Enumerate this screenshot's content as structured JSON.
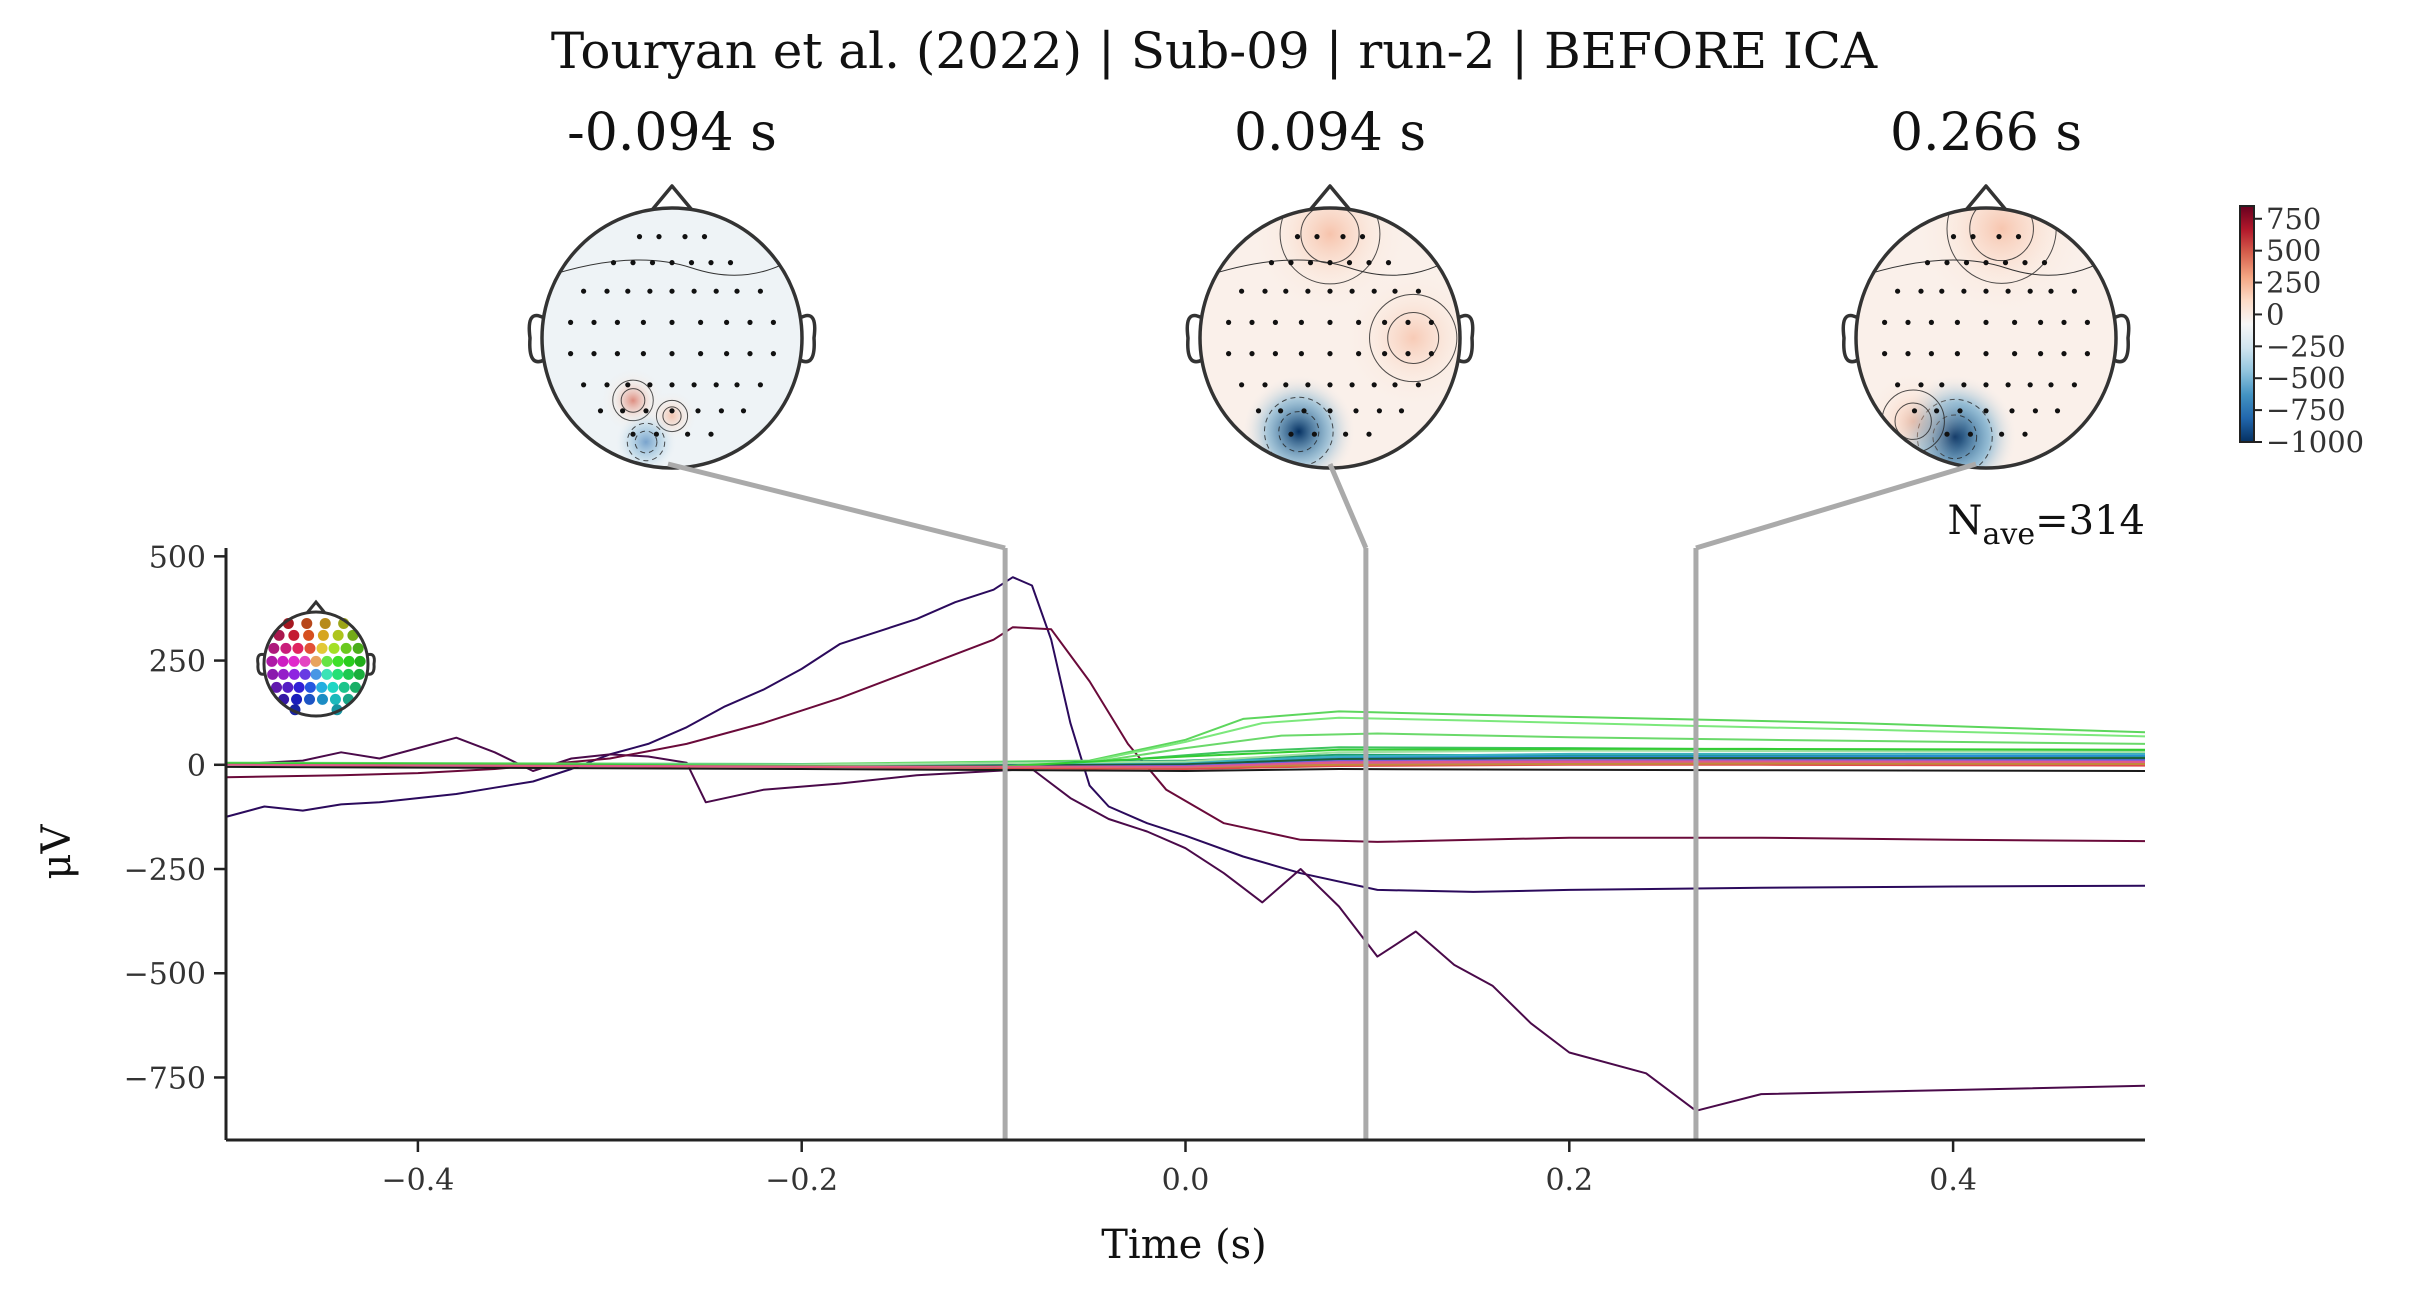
{
  "figure": {
    "title": "Touryan et al. (2022) | Sub-09 | run-2 | BEFORE ICA",
    "nave_label_main": "N",
    "nave_label_sub": "ave",
    "nave_value": "=314"
  },
  "topomaps": [
    {
      "title": "-0.094 s",
      "time": -0.094,
      "blobs": [
        {
          "fx": 0.35,
          "fy": 0.74,
          "r": 0.13,
          "sign": 1,
          "strength": 0.35
        },
        {
          "fx": 0.5,
          "fy": 0.8,
          "r": 0.1,
          "sign": 1,
          "strength": 0.25
        },
        {
          "fx": 0.4,
          "fy": 0.9,
          "r": 0.12,
          "sign": -1,
          "strength": 0.22
        }
      ]
    },
    {
      "title": "0.094 s",
      "time": 0.094,
      "blobs": [
        {
          "fx": 0.38,
          "fy": 0.86,
          "r": 0.22,
          "sign": -1,
          "strength": 0.85
        },
        {
          "fx": 0.5,
          "fy": 0.1,
          "r": 0.32,
          "sign": 1,
          "strength": 0.25
        },
        {
          "fx": 0.82,
          "fy": 0.5,
          "r": 0.28,
          "sign": 1,
          "strength": 0.15
        }
      ]
    },
    {
      "title": "0.266 s",
      "time": 0.266,
      "blobs": [
        {
          "fx": 0.38,
          "fy": 0.88,
          "r": 0.24,
          "sign": -1,
          "strength": 1.0
        },
        {
          "fx": 0.56,
          "fy": 0.08,
          "r": 0.35,
          "sign": 1,
          "strength": 0.22
        },
        {
          "fx": 0.22,
          "fy": 0.82,
          "r": 0.2,
          "sign": 1,
          "strength": 0.2
        }
      ]
    }
  ],
  "colorbar": {
    "ticks": [
      "750",
      "500",
      "250",
      "0",
      "−250",
      "−500",
      "−750",
      "−1000"
    ],
    "tick_values": [
      750,
      500,
      250,
      0,
      -250,
      -500,
      -750,
      -1000
    ],
    "vmin": -1000,
    "vmax": 850,
    "colors": [
      "#67001f",
      "#b2182b",
      "#d6604d",
      "#f4a582",
      "#fddbc7",
      "#f7f7f7",
      "#d1e5f0",
      "#92c5de",
      "#4393c3",
      "#2166ac",
      "#053061"
    ]
  },
  "chart_data": {
    "type": "line",
    "xlabel": "Time (s)",
    "ylabel": "μV",
    "xlim": [
      -0.5,
      0.5
    ],
    "ylim": [
      -900,
      520
    ],
    "x_ticks": [
      -0.4,
      -0.2,
      0.0,
      0.2,
      0.4
    ],
    "x_tick_labels": [
      "−0.4",
      "−0.2",
      "0.0",
      "0.2",
      "0.4"
    ],
    "y_ticks": [
      500,
      250,
      0,
      -250,
      -500,
      -750
    ],
    "y_tick_labels": [
      "500",
      "250",
      "0",
      "−250",
      "−500",
      "−750"
    ],
    "time_markers": [
      -0.094,
      0.094,
      0.266
    ],
    "marker_color": "#aaaaaa",
    "series": [
      {
        "color": "#2b0a5c",
        "points": [
          [
            -0.5,
            -125
          ],
          [
            -0.48,
            -100
          ],
          [
            -0.46,
            -110
          ],
          [
            -0.44,
            -95
          ],
          [
            -0.42,
            -90
          ],
          [
            -0.4,
            -80
          ],
          [
            -0.38,
            -70
          ],
          [
            -0.36,
            -55
          ],
          [
            -0.34,
            -40
          ],
          [
            -0.32,
            -10
          ],
          [
            -0.3,
            25
          ],
          [
            -0.28,
            50
          ],
          [
            -0.26,
            90
          ],
          [
            -0.24,
            140
          ],
          [
            -0.22,
            180
          ],
          [
            -0.2,
            230
          ],
          [
            -0.18,
            290
          ],
          [
            -0.16,
            320
          ],
          [
            -0.14,
            350
          ],
          [
            -0.12,
            390
          ],
          [
            -0.1,
            420
          ],
          [
            -0.09,
            450
          ],
          [
            -0.08,
            430
          ],
          [
            -0.07,
            300
          ],
          [
            -0.06,
            100
          ],
          [
            -0.05,
            -50
          ],
          [
            -0.04,
            -100
          ],
          [
            -0.02,
            -140
          ],
          [
            0.0,
            -170
          ],
          [
            0.03,
            -220
          ],
          [
            0.06,
            -260
          ],
          [
            0.1,
            -300
          ],
          [
            0.15,
            -305
          ],
          [
            0.2,
            -300
          ],
          [
            0.3,
            -295
          ],
          [
            0.4,
            -292
          ],
          [
            0.5,
            -290
          ]
        ]
      },
      {
        "color": "#4a0a4a",
        "points": [
          [
            -0.5,
            0
          ],
          [
            -0.46,
            10
          ],
          [
            -0.44,
            30
          ],
          [
            -0.42,
            15
          ],
          [
            -0.4,
            40
          ],
          [
            -0.38,
            65
          ],
          [
            -0.36,
            30
          ],
          [
            -0.34,
            -15
          ],
          [
            -0.32,
            15
          ],
          [
            -0.3,
            25
          ],
          [
            -0.28,
            20
          ],
          [
            -0.26,
            5
          ],
          [
            -0.25,
            -90
          ],
          [
            -0.22,
            -60
          ],
          [
            -0.18,
            -45
          ],
          [
            -0.14,
            -25
          ],
          [
            -0.1,
            -15
          ],
          [
            -0.08,
            -10
          ],
          [
            -0.06,
            -80
          ],
          [
            -0.04,
            -130
          ],
          [
            -0.02,
            -160
          ],
          [
            0.0,
            -200
          ],
          [
            0.02,
            -260
          ],
          [
            0.04,
            -330
          ],
          [
            0.06,
            -250
          ],
          [
            0.08,
            -340
          ],
          [
            0.1,
            -460
          ],
          [
            0.12,
            -400
          ],
          [
            0.14,
            -480
          ],
          [
            0.16,
            -530
          ],
          [
            0.18,
            -620
          ],
          [
            0.2,
            -690
          ],
          [
            0.24,
            -740
          ],
          [
            0.266,
            -830
          ],
          [
            0.3,
            -790
          ],
          [
            0.4,
            -780
          ],
          [
            0.5,
            -770
          ]
        ]
      },
      {
        "color": "#6a0a3a",
        "points": [
          [
            -0.5,
            -30
          ],
          [
            -0.44,
            -25
          ],
          [
            -0.4,
            -20
          ],
          [
            -0.36,
            -10
          ],
          [
            -0.3,
            15
          ],
          [
            -0.26,
            50
          ],
          [
            -0.22,
            100
          ],
          [
            -0.18,
            160
          ],
          [
            -0.14,
            230
          ],
          [
            -0.1,
            300
          ],
          [
            -0.09,
            330
          ],
          [
            -0.07,
            325
          ],
          [
            -0.05,
            200
          ],
          [
            -0.03,
            50
          ],
          [
            -0.01,
            -60
          ],
          [
            0.02,
            -140
          ],
          [
            0.06,
            -180
          ],
          [
            0.1,
            -185
          ],
          [
            0.2,
            -175
          ],
          [
            0.3,
            -175
          ],
          [
            0.4,
            -180
          ],
          [
            0.5,
            -183
          ]
        ]
      },
      {
        "color": "#5dd65d",
        "points": [
          [
            -0.5,
            5
          ],
          [
            -0.2,
            2
          ],
          [
            -0.05,
            10
          ],
          [
            0.0,
            60
          ],
          [
            0.03,
            110
          ],
          [
            0.08,
            128
          ],
          [
            0.15,
            120
          ],
          [
            0.25,
            110
          ],
          [
            0.35,
            100
          ],
          [
            0.5,
            78
          ]
        ]
      },
      {
        "color": "#7ce87c",
        "points": [
          [
            -0.5,
            2
          ],
          [
            -0.2,
            0
          ],
          [
            -0.05,
            8
          ],
          [
            0.0,
            55
          ],
          [
            0.04,
            100
          ],
          [
            0.08,
            113
          ],
          [
            0.15,
            106
          ],
          [
            0.25,
            95
          ],
          [
            0.35,
            85
          ],
          [
            0.5,
            68
          ]
        ]
      },
      {
        "color": "#6ad96a",
        "points": [
          [
            -0.5,
            0
          ],
          [
            -0.2,
            -2
          ],
          [
            -0.05,
            5
          ],
          [
            0.0,
            40
          ],
          [
            0.05,
            70
          ],
          [
            0.1,
            75
          ],
          [
            0.2,
            66
          ],
          [
            0.3,
            60
          ],
          [
            0.5,
            50
          ]
        ]
      },
      {
        "color": "#3fc45f",
        "points": [
          [
            -0.5,
            0
          ],
          [
            -0.2,
            0
          ],
          [
            -0.05,
            5
          ],
          [
            0.02,
            30
          ],
          [
            0.08,
            42
          ],
          [
            0.2,
            40
          ],
          [
            0.3,
            37
          ],
          [
            0.5,
            32
          ]
        ]
      },
      {
        "color": "#1fa06a",
        "points": [
          [
            -0.5,
            0
          ],
          [
            -0.2,
            -2
          ],
          [
            0.0,
            10
          ],
          [
            0.08,
            24
          ],
          [
            0.2,
            23
          ],
          [
            0.3,
            22
          ],
          [
            0.5,
            20
          ]
        ]
      },
      {
        "color": "#2a8dd6",
        "points": [
          [
            -0.5,
            0
          ],
          [
            -0.2,
            0
          ],
          [
            0.0,
            5
          ],
          [
            0.08,
            18
          ],
          [
            0.2,
            20
          ],
          [
            0.3,
            20
          ],
          [
            0.5,
            22
          ]
        ]
      },
      {
        "color": "#5a6ae0",
        "points": [
          [
            -0.5,
            0
          ],
          [
            -0.2,
            -3
          ],
          [
            0.0,
            0
          ],
          [
            0.08,
            12
          ],
          [
            0.2,
            15
          ],
          [
            0.3,
            14
          ],
          [
            0.5,
            12
          ]
        ]
      },
      {
        "color": "#8a5ad6",
        "points": [
          [
            -0.5,
            0
          ],
          [
            -0.2,
            -4
          ],
          [
            0.0,
            -4
          ],
          [
            0.08,
            8
          ],
          [
            0.2,
            10
          ],
          [
            0.3,
            10
          ],
          [
            0.5,
            9
          ]
        ]
      },
      {
        "color": "#d65aa8",
        "points": [
          [
            -0.5,
            0
          ],
          [
            -0.2,
            -5
          ],
          [
            0.0,
            -8
          ],
          [
            0.08,
            2
          ],
          [
            0.2,
            4
          ],
          [
            0.3,
            4
          ],
          [
            0.5,
            3
          ]
        ]
      },
      {
        "color": "#e04a4a",
        "points": [
          [
            -0.5,
            0
          ],
          [
            -0.2,
            -5
          ],
          [
            0.0,
            -10
          ],
          [
            0.08,
            -3
          ],
          [
            0.2,
            0
          ],
          [
            0.3,
            0
          ],
          [
            0.5,
            -2
          ]
        ]
      },
      {
        "color": "#c28a3a",
        "points": [
          [
            -0.5,
            0
          ],
          [
            -0.2,
            -4
          ],
          [
            0.0,
            -6
          ],
          [
            0.08,
            0
          ],
          [
            0.2,
            2
          ],
          [
            0.3,
            3
          ],
          [
            0.5,
            2
          ]
        ]
      },
      {
        "color": "#1a1a1a",
        "points": [
          [
            -0.5,
            -5
          ],
          [
            -0.2,
            -10
          ],
          [
            0.0,
            -15
          ],
          [
            0.08,
            -10
          ],
          [
            0.2,
            -12
          ],
          [
            0.3,
            -13
          ],
          [
            0.5,
            -15
          ]
        ]
      },
      {
        "color": "#1b5e3a",
        "points": [
          [
            -0.5,
            0
          ],
          [
            -0.2,
            -2
          ],
          [
            0.0,
            2
          ],
          [
            0.08,
            14
          ],
          [
            0.2,
            16
          ],
          [
            0.3,
            16
          ],
          [
            0.5,
            16
          ]
        ]
      },
      {
        "color": "#3ab0c0",
        "points": [
          [
            -0.5,
            0
          ],
          [
            -0.2,
            0
          ],
          [
            0.0,
            6
          ],
          [
            0.08,
            20
          ],
          [
            0.2,
            26
          ],
          [
            0.3,
            26
          ],
          [
            0.5,
            26
          ]
        ]
      },
      {
        "color": "#a0e0a0",
        "points": [
          [
            -0.5,
            0
          ],
          [
            -0.2,
            0
          ],
          [
            0.0,
            8
          ],
          [
            0.08,
            30
          ],
          [
            0.2,
            34
          ],
          [
            0.3,
            33
          ],
          [
            0.5,
            31
          ]
        ]
      },
      {
        "color": "#33cc33",
        "points": [
          [
            -0.5,
            3
          ],
          [
            -0.3,
            0
          ],
          [
            -0.1,
            -5
          ],
          [
            0.0,
            20
          ],
          [
            0.08,
            36
          ],
          [
            0.2,
            38
          ],
          [
            0.3,
            38
          ],
          [
            0.5,
            36
          ]
        ]
      },
      {
        "color": "#e05a8a",
        "points": [
          [
            -0.5,
            0
          ],
          [
            -0.2,
            -4
          ],
          [
            0.0,
            -5
          ],
          [
            0.08,
            6
          ],
          [
            0.2,
            8
          ],
          [
            0.3,
            8
          ],
          [
            0.5,
            7
          ]
        ]
      }
    ]
  }
}
